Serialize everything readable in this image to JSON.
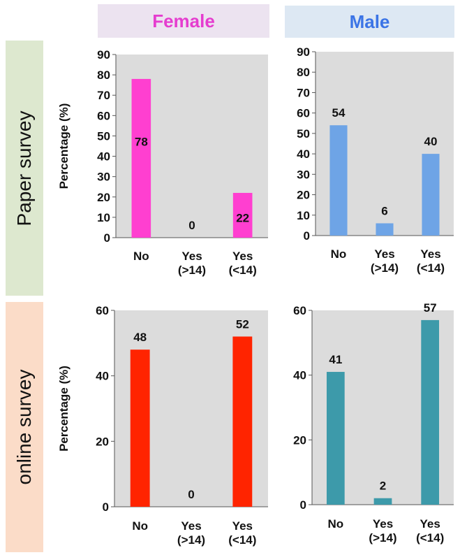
{
  "columns": {
    "female": {
      "label": "Female",
      "bg": "#ece3f0",
      "color": "#e53dcf"
    },
    "male": {
      "label": "Male",
      "bg": "#dde8f3",
      "color": "#3b74e6"
    }
  },
  "rows": {
    "paper": {
      "label": "Paper survey",
      "bg": "#dde8cf"
    },
    "online": {
      "label": "online survey",
      "bg": "#fbdcc8"
    }
  },
  "chart_data": [
    {
      "type": "bar",
      "row": "paper",
      "column": "female",
      "categories": [
        "No",
        "Yes\n(>14)",
        "Yes\n(<14)"
      ],
      "values": [
        78,
        0,
        22
      ],
      "ylabel": "Percentage (%)",
      "ylim": [
        0,
        90
      ],
      "yticks": [
        0,
        10,
        20,
        30,
        40,
        50,
        60,
        70,
        80,
        90
      ],
      "color": "#ff3fd0",
      "label_position": "inside",
      "grid": false,
      "plot_bg": "#dcdcdc"
    },
    {
      "type": "bar",
      "row": "paper",
      "column": "male",
      "categories": [
        "No",
        "Yes\n(>14)",
        "Yes\n(<14)"
      ],
      "values": [
        54,
        6,
        40
      ],
      "ylabel": "",
      "ylim": [
        0,
        90
      ],
      "yticks": [
        0,
        10,
        20,
        30,
        40,
        50,
        60,
        70,
        80,
        90
      ],
      "color": "#6ea4e6",
      "label_position": "above",
      "grid": false,
      "plot_bg": "#dcdcdc"
    },
    {
      "type": "bar",
      "row": "online",
      "column": "female",
      "categories": [
        "No",
        "Yes\n(>14)",
        "Yes\n(<14)"
      ],
      "values": [
        48,
        0,
        52
      ],
      "ylabel": "Percentage (%)",
      "ylim": [
        0,
        60
      ],
      "yticks": [
        0,
        20,
        40,
        60
      ],
      "color": "#ff2400",
      "label_position": "above",
      "grid": false,
      "plot_bg": "#dcdcdc"
    },
    {
      "type": "bar",
      "row": "online",
      "column": "male",
      "categories": [
        "No",
        "Yes\n(>14)",
        "Yes\n(<14)"
      ],
      "values": [
        41,
        2,
        57
      ],
      "ylabel": "",
      "ylim": [
        0,
        60
      ],
      "yticks": [
        0,
        20,
        40,
        60
      ],
      "color": "#3d9aaa",
      "label_position": "above",
      "grid": false,
      "plot_bg": "#dcdcdc"
    }
  ]
}
